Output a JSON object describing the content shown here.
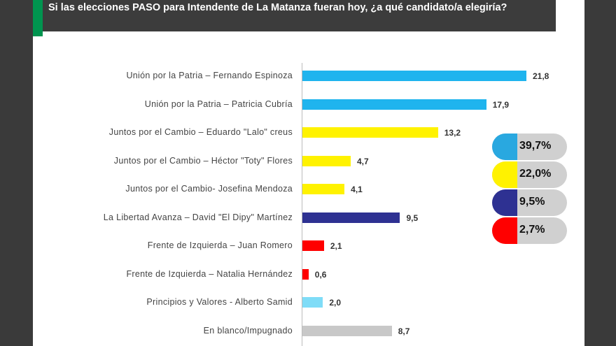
{
  "title": "Si las elecciones PASO para Intendente de La Matanza fueran hoy, ¿a qué candidato/a elegiría?",
  "chart_data": {
    "type": "bar",
    "orientation": "horizontal",
    "title": "Si las elecciones PASO para Intendente de La Matanza fueran hoy, ¿a qué candidato/a elegiría?",
    "categories": [
      "Unión por la Patria – Fernando Espinoza",
      "Unión por la Patria – Patricia Cubría",
      "Juntos por el Cambio – Eduardo \"Lalo\" creus",
      "Juntos por el Cambio – Héctor \"Toty\" Flores",
      "Juntos por el Cambio- Josefina Mendoza",
      "La Libertad Avanza – David \"El Dipy\" Martínez",
      "Frente de Izquierda – Juan Romero",
      "Frente de Izquierda – Natalia Hernández",
      "Principios y Valores - Alberto Samid",
      "En blanco/Impugnado"
    ],
    "values": [
      21.8,
      17.9,
      13.2,
      4.7,
      4.1,
      9.5,
      2.1,
      0.6,
      2.0,
      8.7
    ],
    "value_labels": [
      "21,8",
      "17,9",
      "13,2",
      "4,7",
      "4,1",
      "9,5",
      "2,1",
      "0,6",
      "2,0",
      "8,7"
    ],
    "colors": [
      "#1fb4ee",
      "#1fb4ee",
      "#fff200",
      "#fff200",
      "#fff200",
      "#2e3192",
      "#ff0000",
      "#ff0000",
      "#7fdcf7",
      "#c8c8c8"
    ],
    "xlim": [
      0,
      22
    ]
  },
  "totals": [
    {
      "label": "39,7%",
      "color": "#29a8e0"
    },
    {
      "label": "22,0%",
      "color": "#fff200"
    },
    {
      "label": "9,5%",
      "color": "#2e3192"
    },
    {
      "label": "2,7%",
      "color": "#ff0000"
    }
  ]
}
